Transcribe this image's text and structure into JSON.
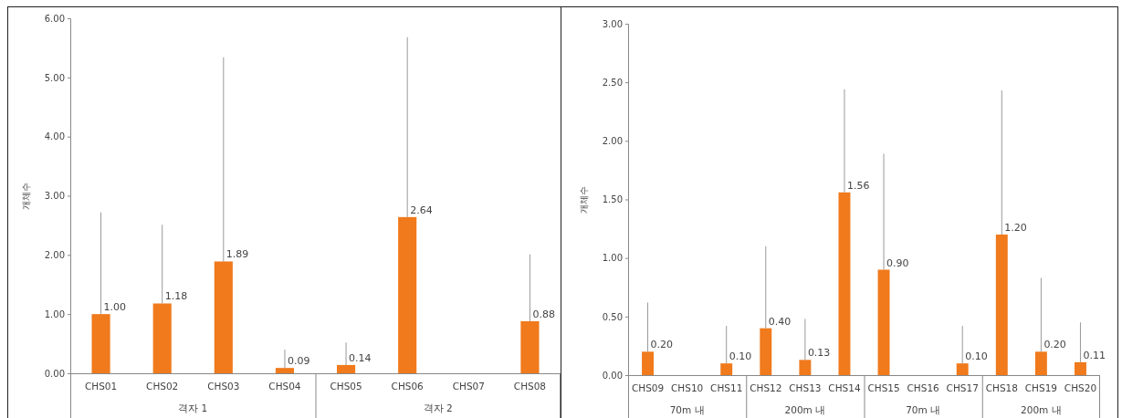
{
  "chart_data": [
    {
      "type": "bar",
      "ylabel": "개체수",
      "categories": [
        "CHS01",
        "CHS02",
        "CHS03",
        "CHS04",
        "CHS05",
        "CHS06",
        "CHS07",
        "CHS08"
      ],
      "values": [
        1.0,
        1.18,
        1.89,
        0.09,
        0.14,
        2.64,
        0,
        0.88
      ],
      "value_labels": [
        "1.00",
        "1.18",
        "1.89",
        "0.09",
        "0.14",
        "2.64",
        null,
        "0.88"
      ],
      "errors": [
        [
          1.0,
          2.72
        ],
        [
          1.18,
          2.51
        ],
        [
          1.89,
          5.34
        ],
        [
          0.09,
          0.4
        ],
        [
          0.14,
          0.52
        ],
        [
          2.64,
          5.68
        ],
        null,
        [
          0.88,
          2.01
        ]
      ],
      "color": "#f07a1c",
      "ylim": [
        0,
        6
      ],
      "yticks": [
        {
          "value": 0,
          "label": "0.00"
        },
        {
          "value": 1,
          "label": "1.00"
        },
        {
          "value": 2,
          "label": "2.00"
        },
        {
          "value": 3,
          "label": "3.00"
        },
        {
          "value": 4,
          "label": "4.00"
        },
        {
          "value": 5,
          "label": "5.00"
        },
        {
          "value": 6,
          "label": "6.00"
        }
      ],
      "annotations": [
        "격자 1",
        "격자 2"
      ]
    },
    {
      "type": "bar",
      "ylabel": "개체수",
      "categories": [
        "CHS09",
        "CHS10",
        "CHS11",
        "CHS12",
        "CHS13",
        "CHS14",
        "CHS15",
        "CHS16",
        "CHS17",
        "CHS18",
        "CHS19",
        "CHS20"
      ],
      "values": [
        0.2,
        0,
        0.1,
        0.4,
        0.13,
        1.56,
        0.9,
        0,
        0.1,
        1.2,
        0.2,
        0.11
      ],
      "value_labels": [
        "0.20",
        null,
        "0.10",
        "0.40",
        "0.13",
        "1.56",
        "0.90",
        null,
        "0.10",
        "1.20",
        "0.20",
        "0.11"
      ],
      "errors": [
        [
          0.2,
          0.62
        ],
        null,
        [
          0.1,
          0.42
        ],
        [
          0.4,
          1.1
        ],
        [
          0.13,
          0.48
        ],
        [
          1.56,
          2.44
        ],
        [
          0.9,
          1.89
        ],
        null,
        [
          0.1,
          0.42
        ],
        [
          1.2,
          2.43
        ],
        [
          0.2,
          0.83
        ],
        [
          0.11,
          0.45
        ]
      ],
      "color": "#f07a1c",
      "ylim": [
        0,
        3
      ],
      "yticks": [
        {
          "value": 0,
          "label": "0.00"
        },
        {
          "value": 0.5,
          "label": "0.50"
        },
        {
          "value": 1,
          "label": "1.00"
        },
        {
          "value": 1.5,
          "label": "1.50"
        },
        {
          "value": 2,
          "label": "2.00"
        },
        {
          "value": 2.5,
          "label": "2.50"
        },
        {
          "value": 3,
          "label": "3.00"
        }
      ],
      "annotations": [
        "70m 내",
        "200m 내",
        "70m 내",
        "200m 내"
      ]
    }
  ]
}
